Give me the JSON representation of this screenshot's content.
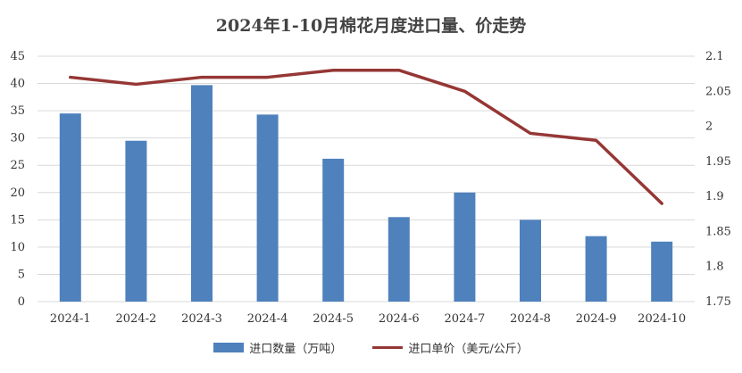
{
  "chart_data": {
    "type": "bar",
    "title": "2024年1-10月棉花月度进口量、价走势",
    "categories": [
      "2024-1",
      "2024-2",
      "2024-3",
      "2024-4",
      "2024-5",
      "2024-6",
      "2024-7",
      "2024-8",
      "2024-9",
      "2024-10"
    ],
    "series": [
      {
        "name": "进口数量（万吨）",
        "type": "bar",
        "axis": "left",
        "color": "#4F81BD",
        "values": [
          34.5,
          29.5,
          39.7,
          34.3,
          26.2,
          15.5,
          20.0,
          15.0,
          12.0,
          11.0
        ]
      },
      {
        "name": "进口单价（美元/公斤）",
        "type": "line",
        "axis": "right",
        "color": "#953735",
        "values": [
          2.07,
          2.06,
          2.07,
          2.07,
          2.08,
          2.08,
          2.05,
          1.99,
          1.98,
          1.89
        ]
      }
    ],
    "y_left": {
      "min": 0,
      "max": 45,
      "ticks": [
        0,
        5,
        10,
        15,
        20,
        25,
        30,
        35,
        40,
        45
      ]
    },
    "y_right": {
      "min": 1.75,
      "max": 2.1,
      "ticks": [
        1.75,
        1.8,
        1.85,
        1.9,
        1.95,
        2,
        2.05,
        2.1
      ]
    },
    "grid": true,
    "legend_position": "bottom"
  }
}
